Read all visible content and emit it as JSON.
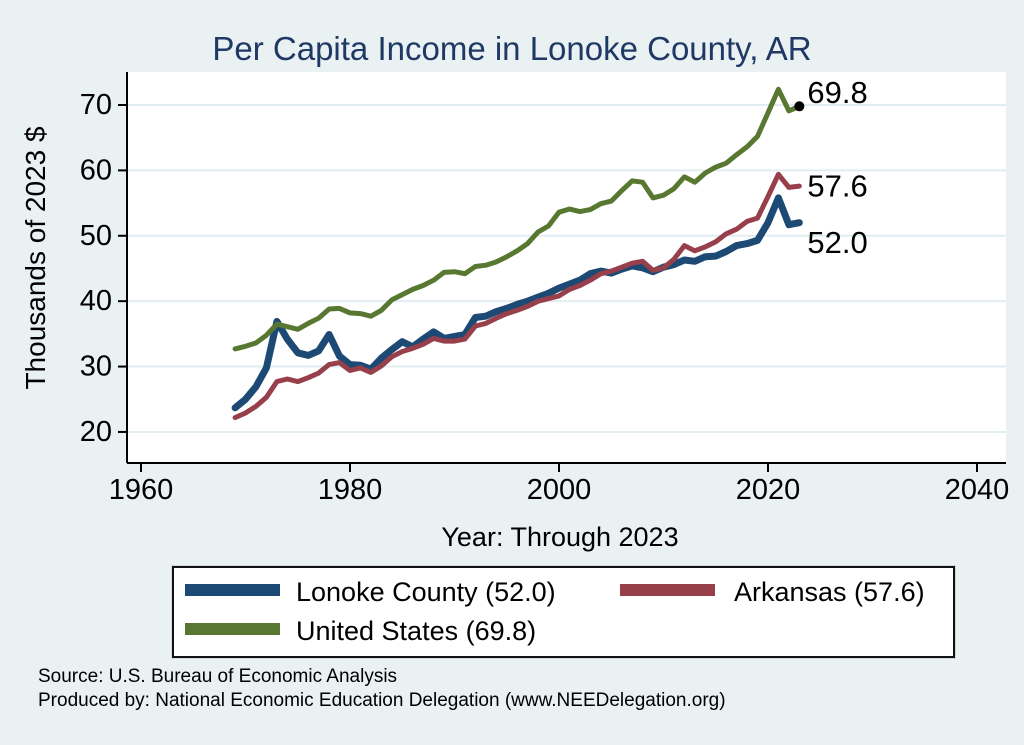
{
  "title": "Per Capita Income in Lonoke County, AR",
  "chart_data": {
    "type": "line",
    "title": "Per Capita Income in Lonoke County, AR",
    "xlabel": "Year: Through 2023",
    "ylabel": "Thousands of 2023 $",
    "x_range_shown": [
      1960,
      2040
    ],
    "xticks": [
      1960,
      1980,
      2000,
      2020,
      2040
    ],
    "yticks": [
      20,
      30,
      40,
      50,
      60,
      70
    ],
    "xlim": [
      1958.6,
      2042.8
    ],
    "ylim": [
      15.3,
      75.0
    ],
    "grid": "horizontal",
    "legend_position": "bottom",
    "x": [
      1969,
      1970,
      1971,
      1972,
      1973,
      1974,
      1975,
      1976,
      1977,
      1978,
      1979,
      1980,
      1981,
      1982,
      1983,
      1984,
      1985,
      1986,
      1987,
      1988,
      1989,
      1990,
      1991,
      1992,
      1993,
      1994,
      1995,
      1996,
      1997,
      1998,
      1999,
      2000,
      2001,
      2002,
      2003,
      2004,
      2005,
      2006,
      2007,
      2008,
      2009,
      2010,
      2011,
      2012,
      2013,
      2014,
      2015,
      2016,
      2017,
      2018,
      2019,
      2020,
      2021,
      2022,
      2023
    ],
    "series": [
      {
        "name": "Lonoke County",
        "legend_label": "Lonoke County (52.0)",
        "color": "#1c4a75",
        "end_label": "52.0",
        "end_dot": false,
        "final_value": 52.0,
        "values": [
          23.7,
          25.0,
          26.9,
          29.8,
          36.9,
          34.2,
          32.1,
          31.7,
          32.4,
          34.9,
          31.6,
          30.3,
          30.2,
          29.6,
          31.3,
          32.6,
          33.8,
          33.0,
          34.2,
          35.3,
          34.3,
          34.6,
          34.9,
          37.5,
          37.7,
          38.4,
          38.9,
          39.5,
          40.0,
          40.6,
          41.2,
          42.0,
          42.6,
          43.2,
          44.2,
          44.6,
          44.3,
          44.9,
          45.4,
          45.1,
          44.5,
          45.2,
          45.6,
          46.3,
          46.1,
          46.8,
          46.9,
          47.6,
          48.5,
          48.8,
          49.3,
          52.0,
          55.8,
          51.7,
          52.0
        ]
      },
      {
        "name": "Arkansas",
        "legend_label": "Arkansas (57.6)",
        "color": "#97404c",
        "end_label": "57.6",
        "end_dot": false,
        "final_value": 57.6,
        "values": [
          22.2,
          22.9,
          23.9,
          25.3,
          27.7,
          28.1,
          27.7,
          28.3,
          29.0,
          30.3,
          30.6,
          29.4,
          29.8,
          29.1,
          30.1,
          31.5,
          32.3,
          32.8,
          33.4,
          34.3,
          33.9,
          33.9,
          34.2,
          36.2,
          36.6,
          37.4,
          38.1,
          38.6,
          39.2,
          40.0,
          40.4,
          40.8,
          41.8,
          42.4,
          43.2,
          44.2,
          44.6,
          45.2,
          45.8,
          46.1,
          44.7,
          45.1,
          46.4,
          48.5,
          47.7,
          48.3,
          49.1,
          50.3,
          51.0,
          52.2,
          52.7,
          56.0,
          59.4,
          57.4,
          57.6
        ]
      },
      {
        "name": "United States",
        "legend_label": "United States (69.8)",
        "color": "#587831",
        "end_label": "69.8",
        "end_dot": true,
        "final_value": 69.8,
        "values": [
          32.7,
          33.1,
          33.6,
          34.8,
          36.5,
          36.1,
          35.7,
          36.6,
          37.4,
          38.8,
          38.9,
          38.2,
          38.1,
          37.7,
          38.6,
          40.2,
          41.0,
          41.8,
          42.4,
          43.2,
          44.4,
          44.5,
          44.2,
          45.3,
          45.5,
          46.0,
          46.8,
          47.7,
          48.8,
          50.6,
          51.5,
          53.6,
          54.1,
          53.7,
          54.0,
          54.9,
          55.3,
          56.9,
          58.4,
          58.2,
          55.8,
          56.2,
          57.2,
          59.0,
          58.2,
          59.6,
          60.5,
          61.1,
          62.4,
          63.6,
          65.2,
          68.8,
          72.4,
          69.1,
          69.8
        ]
      }
    ],
    "colors": {
      "background": "#eaf1f3",
      "plot_background": "#ffffff",
      "gridline": "#e2edf1",
      "axis": "#000000",
      "title": "#1f3864"
    }
  },
  "footer": {
    "line1": "Source: U.S. Bureau of Economic Analysis",
    "line2": "Produced by: National Economic Education Delegation (www.NEEDelegation.org)"
  }
}
